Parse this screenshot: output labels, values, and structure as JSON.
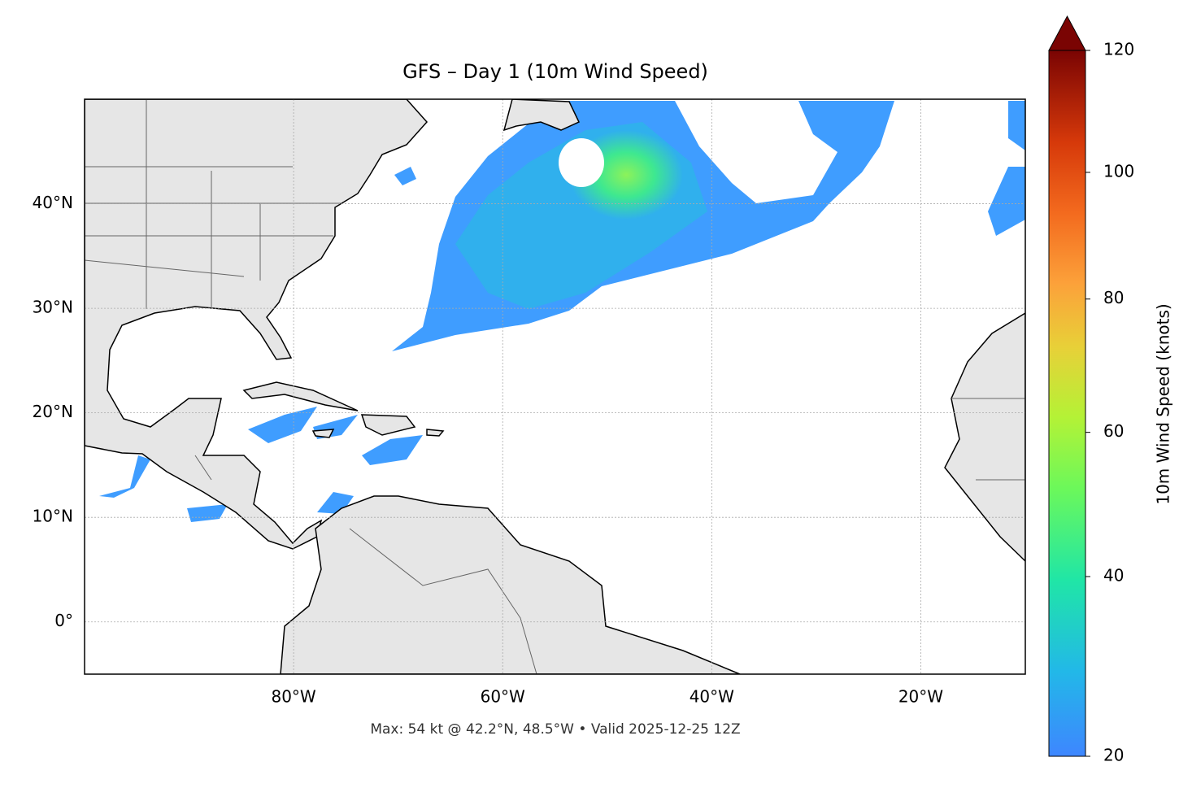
{
  "map": {
    "title": "GFS – Day 1 (10m Wind Speed)",
    "footer": "Max: 54 kt @ 42.2°N, 48.5°W • Valid 2025-12-25 12Z",
    "xlim": [
      -100,
      -10
    ],
    "ylim": [
      -5,
      50
    ],
    "xticks": [
      {
        "value": -80,
        "label": "80°W"
      },
      {
        "value": -60,
        "label": "60°W"
      },
      {
        "value": -40,
        "label": "40°W"
      },
      {
        "value": -20,
        "label": "20°W"
      }
    ],
    "yticks": [
      {
        "value": 0,
        "label": "0°"
      },
      {
        "value": 10,
        "label": "10°N"
      },
      {
        "value": 20,
        "label": "20°N"
      },
      {
        "value": 30,
        "label": "30°N"
      },
      {
        "value": 40,
        "label": "40°N"
      }
    ],
    "grid": true,
    "colorbar": {
      "label": "10m Wind Speed (knots)",
      "lim": [
        20,
        120
      ],
      "ticks": [
        20,
        40,
        60,
        80,
        100,
        120
      ],
      "extend": "max"
    }
  }
}
